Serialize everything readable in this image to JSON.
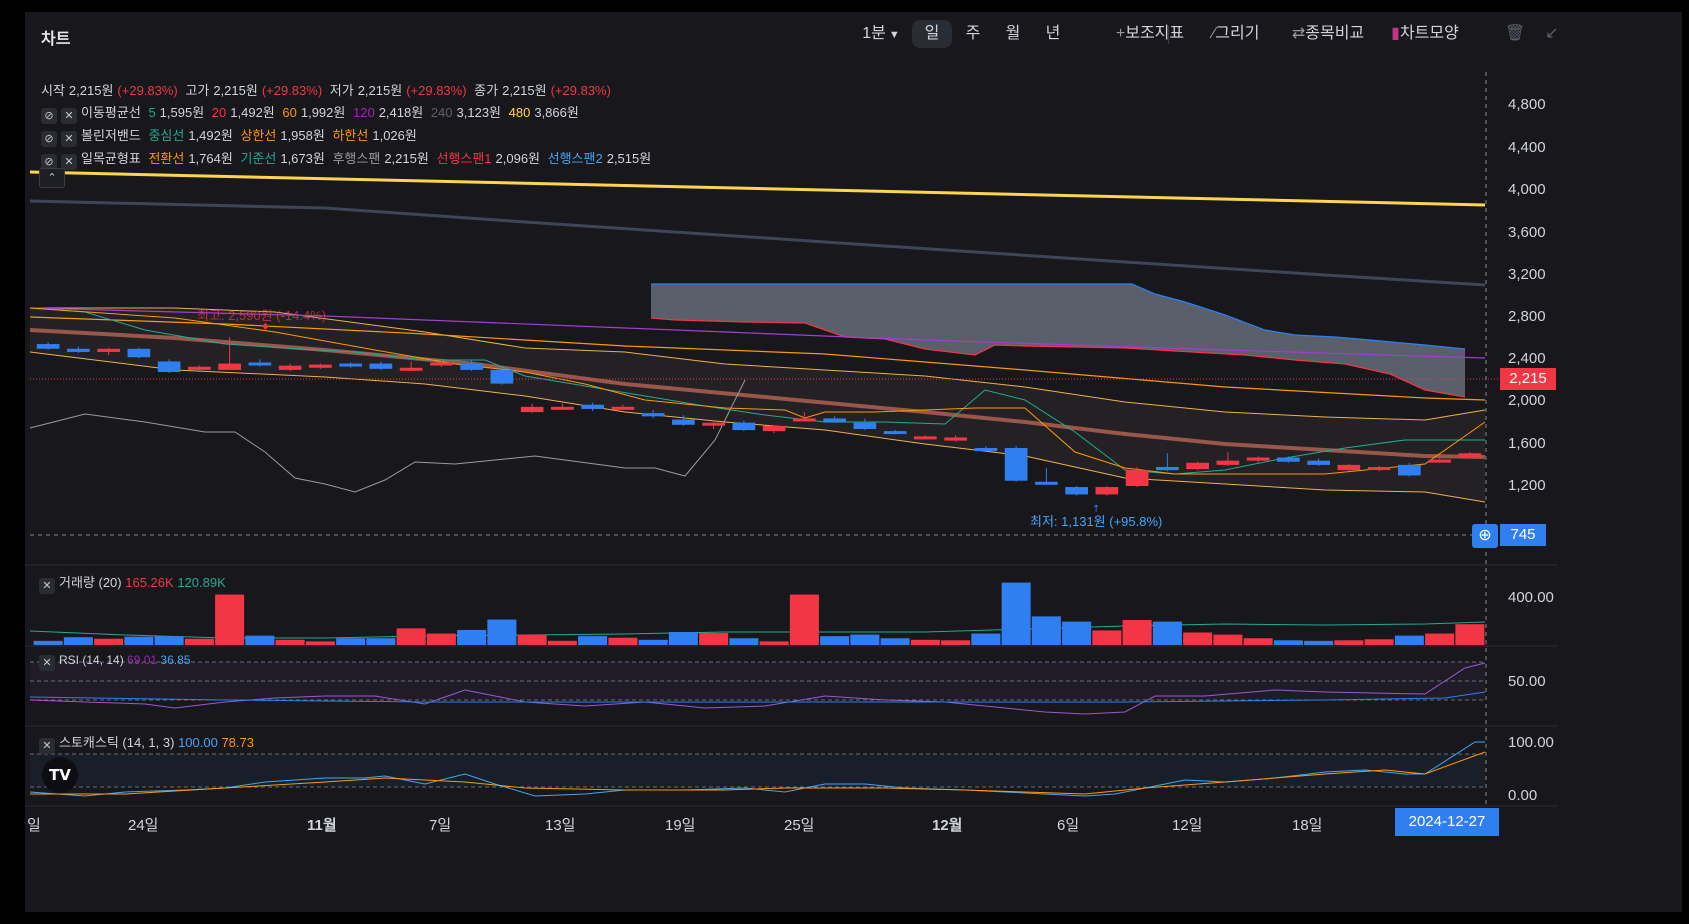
{
  "title": "차트",
  "toolbar": {
    "interval": "1분",
    "periods": [
      "일",
      "주",
      "월",
      "년"
    ],
    "indicator": "보조지표",
    "draw": "그리기",
    "compare": "종목비교",
    "style": "차트모양"
  },
  "ohlc": {
    "open_label": "시작",
    "open": "2,215원",
    "open_pct": "(+29.83%)",
    "high_label": "고가",
    "high": "2,215원",
    "high_pct": "(+29.83%)",
    "low_label": "저가",
    "low": "2,215원",
    "low_pct": "(+29.83%)",
    "close_label": "종가",
    "close": "2,215원",
    "close_pct": "(+29.83%)"
  },
  "ma": {
    "name": "이동평균선",
    "items": [
      {
        "period": "5",
        "value": "1,595원",
        "color": "#22ab94"
      },
      {
        "period": "20",
        "value": "1,492원",
        "color": "#f23645"
      },
      {
        "period": "60",
        "value": "1,992원",
        "color": "#ff9800"
      },
      {
        "period": "120",
        "value": "2,418원",
        "color": "#9c27b0"
      },
      {
        "period": "240",
        "value": "3,123원",
        "color": "#363a45"
      },
      {
        "period": "480",
        "value": "3,866원",
        "color": "#ffd54f"
      }
    ]
  },
  "bb": {
    "name": "볼린저밴드",
    "mid_label": "중심선",
    "mid": "1,492원",
    "upper_label": "상한선",
    "upper": "1,958원",
    "lower_label": "하한선",
    "lower": "1,026원"
  },
  "ichimoku": {
    "name": "일목균형표",
    "conv_label": "전환선",
    "conv": "1,764원",
    "base_label": "기준선",
    "base": "1,673원",
    "lag_label": "후행스팬",
    "lag": "2,215원",
    "spanA_label": "선행스팬1",
    "spanA": "2,096원",
    "spanB_label": "선행스팬2",
    "spanB": "2,515원"
  },
  "annotations": {
    "high": "최고: 2,590원 (-14.4%)",
    "low": "최저: 1,131원 (+95.8%)"
  },
  "price_axis": [
    "4,800",
    "4,400",
    "4,000",
    "3,600",
    "3,200",
    "2,800",
    "2,400",
    "2,000",
    "1,600",
    "1,200"
  ],
  "current_price": "2,215",
  "crosshair_price": "745",
  "volume": {
    "label": "거래량 (20)",
    "v1": "165.26K",
    "v2": "120.89K",
    "axis": "400.00"
  },
  "rsi": {
    "label": "RSI (14, 14)",
    "v1": "69.01",
    "v2": "36.85",
    "axis": "50.00"
  },
  "stoch": {
    "label": "스토캐스틱 (14, 1, 3)",
    "v1": "100.00",
    "v2": "78.73",
    "axis_top": "100.00",
    "axis_bottom": "0.00"
  },
  "x_axis": [
    "일",
    "24일",
    "11월",
    "7일",
    "13일",
    "19일",
    "25일",
    "12월",
    "6일",
    "12일",
    "18일"
  ],
  "crosshair_date": "2024-12-27",
  "colors": {
    "up": "#f23645",
    "down": "#2f7ff0",
    "background": "#17171c"
  }
}
